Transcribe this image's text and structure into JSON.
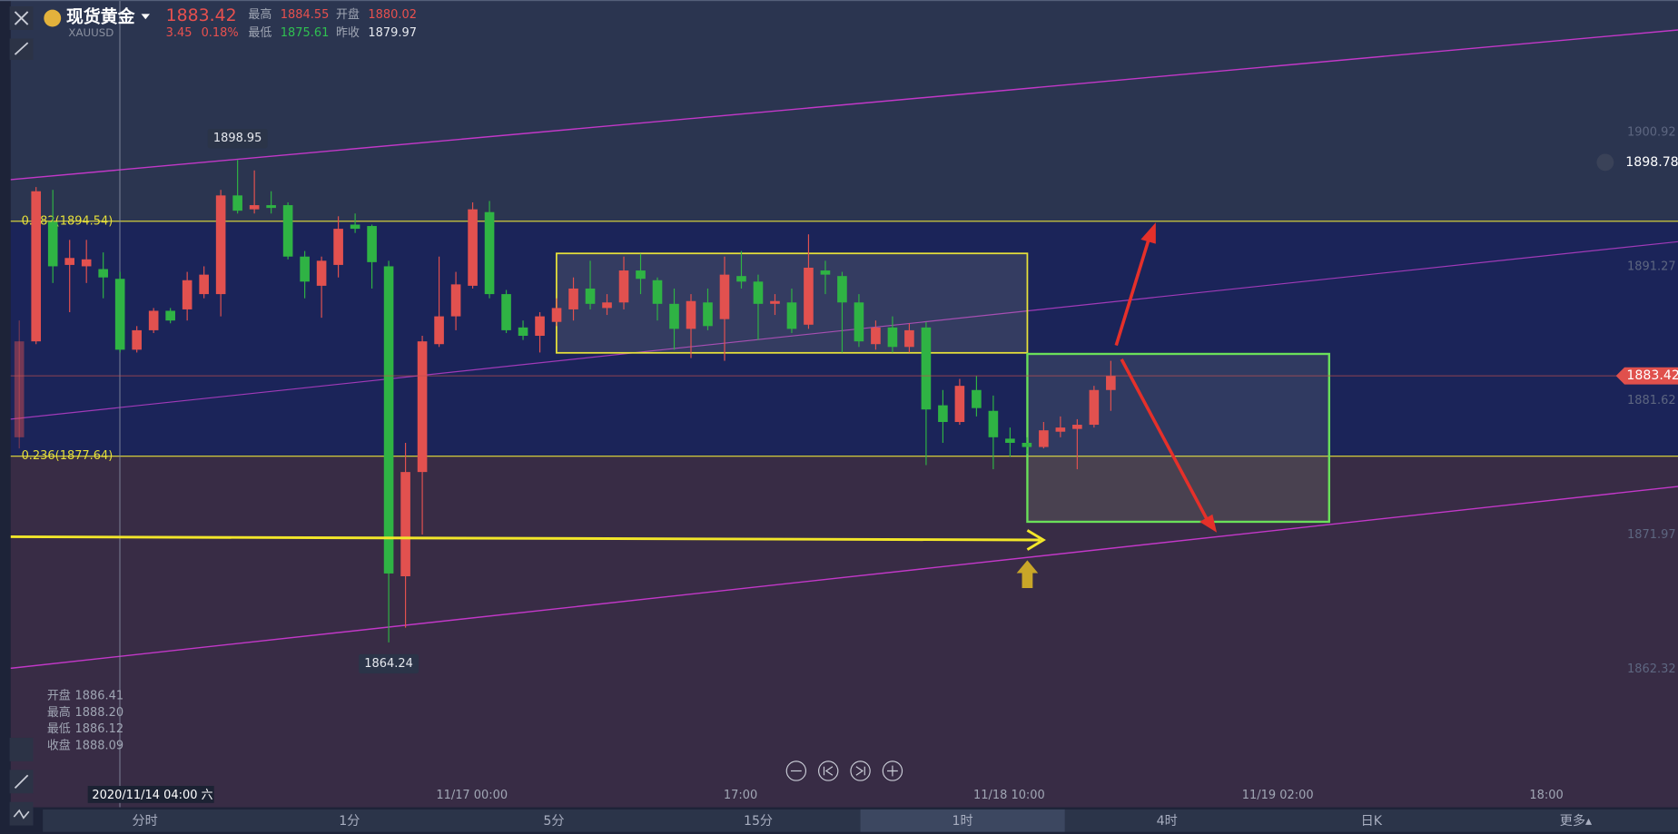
{
  "header": {
    "symbol": "现货黄金",
    "ticker": "XAUUSD",
    "price": "1883.42",
    "change": "3.45",
    "change_pct": "0.18%",
    "high_label": "最高",
    "high": "1884.55",
    "open_label": "开盘",
    "open": "1880.02",
    "low_label": "最低",
    "low": "1875.61",
    "prev_label": "昨收",
    "prev": "1879.97"
  },
  "chart_data": {
    "type": "candlestick",
    "up_color": "#e2514f",
    "down_color": "#2fb344",
    "open": [
      1879.0,
      1885.9,
      1894.5,
      1891.4,
      1891.3,
      1891.1,
      1890.4,
      1885.3,
      1886.7,
      1888.1,
      1888.2,
      1889.3,
      1889.3,
      1896.4,
      1895.4,
      1895.7,
      1895.7,
      1892.0,
      1889.9,
      1891.4,
      1894.3,
      1894.2,
      1891.3,
      1869.0,
      1876.5,
      1885.7,
      1887.7,
      1889.9,
      1895.2,
      1889.3,
      1886.9,
      1886.3,
      1887.3,
      1888.2,
      1889.7,
      1888.3,
      1888.7,
      1891.0,
      1890.3,
      1888.6,
      1886.8,
      1888.7,
      1887.5,
      1890.6,
      1890.2,
      1888.6,
      1888.7,
      1887.1,
      1891.0,
      1890.6,
      1888.7,
      1885.7,
      1886.9,
      1885.5,
      1886.9,
      1881.3,
      1880.1,
      1882.4,
      1880.9,
      1878.9,
      1878.6,
      1878.3,
      1879.4,
      1879.6,
      1879.9,
      1882.4
    ],
    "high": [
      1887.4,
      1897.0,
      1896.8,
      1893.2,
      1893.2,
      1892.3,
      1890.9,
      1887.0,
      1888.3,
      1888.3,
      1890.9,
      1891.3,
      1896.8,
      1898.95,
      1898.2,
      1896.7,
      1895.9,
      1892.4,
      1892.0,
      1894.9,
      1895.1,
      1894.3,
      1891.7,
      1878.6,
      1886.3,
      1892.0,
      1890.9,
      1895.9,
      1896.0,
      1889.6,
      1887.4,
      1888.0,
      1889.0,
      1890.5,
      1891.7,
      1889.3,
      1892.0,
      1892.2,
      1890.5,
      1889.7,
      1889.3,
      1889.7,
      1892.0,
      1892.4,
      1890.7,
      1889.3,
      1889.7,
      1893.6,
      1891.7,
      1890.9,
      1889.3,
      1887.4,
      1887.7,
      1887.2,
      1887.3,
      1882.4,
      1883.2,
      1883.4,
      1882.0,
      1879.7,
      1879.0,
      1880.1,
      1880.5,
      1880.3,
      1882.7,
      1884.5
    ],
    "low": [
      1878.2,
      1885.7,
      1890.1,
      1888.0,
      1890.1,
      1889.0,
      1885.1,
      1885.1,
      1886.5,
      1887.2,
      1887.4,
      1889.0,
      1887.7,
      1895.1,
      1895.1,
      1895.1,
      1891.8,
      1889.0,
      1887.6,
      1890.5,
      1893.7,
      1889.7,
      1864.24,
      1865.3,
      1872.0,
      1885.5,
      1886.7,
      1889.7,
      1889.0,
      1886.5,
      1886.0,
      1885.1,
      1887.0,
      1887.4,
      1888.2,
      1887.8,
      1888.2,
      1889.3,
      1887.4,
      1885.3,
      1884.7,
      1886.7,
      1884.5,
      1889.7,
      1886.0,
      1887.8,
      1886.5,
      1886.8,
      1889.3,
      1885.1,
      1885.5,
      1885.3,
      1885.1,
      1885.1,
      1877.0,
      1878.6,
      1879.9,
      1880.5,
      1876.7,
      1877.6,
      1877.8,
      1878.2,
      1879.0,
      1876.7,
      1879.7,
      1880.9
    ],
    "close": [
      1885.9,
      1896.7,
      1891.3,
      1891.9,
      1891.8,
      1890.5,
      1885.3,
      1886.7,
      1888.1,
      1887.4,
      1890.3,
      1890.7,
      1896.4,
      1895.3,
      1895.7,
      1895.5,
      1892.0,
      1890.2,
      1891.7,
      1894.0,
      1894.0,
      1891.6,
      1869.2,
      1876.5,
      1885.9,
      1887.7,
      1890.0,
      1895.4,
      1889.3,
      1886.7,
      1886.3,
      1887.7,
      1888.3,
      1889.7,
      1888.6,
      1888.7,
      1891.0,
      1890.4,
      1888.6,
      1886.8,
      1888.8,
      1887.0,
      1890.7,
      1890.2,
      1888.6,
      1888.8,
      1886.8,
      1891.2,
      1890.7,
      1888.7,
      1885.9,
      1886.9,
      1885.5,
      1886.7,
      1881.0,
      1880.1,
      1882.7,
      1881.1,
      1879.0,
      1878.6,
      1878.3,
      1879.5,
      1879.7,
      1879.9,
      1882.4,
      1883.42
    ],
    "ylim": [
      1852.38,
      1910.46
    ],
    "yticks": [
      1900.92,
      1891.27,
      1881.62,
      1871.97,
      1862.32
    ],
    "fib_levels": [
      {
        "label": "0.382(1894.54)",
        "value": 1894.54
      },
      {
        "label": "0.236(1877.64)",
        "value": 1877.64
      }
    ],
    "last_price": 1883.42,
    "alert_price": 1898.78,
    "max_callout": 1898.95,
    "min_callout": 1864.24,
    "x_labels": [
      "2020/11/14 04:00 六",
      "11/17 00:00",
      "17:00",
      "11/18 10:00",
      "11/19 02:00",
      "18:00"
    ]
  },
  "info": [
    {
      "label": "开盘",
      "value": "1886.41"
    },
    {
      "label": "最高",
      "value": "1888.20"
    },
    {
      "label": "最低",
      "value": "1886.12"
    },
    {
      "label": "收盘",
      "value": "1888.09"
    }
  ],
  "tabs": [
    "分时",
    "1分",
    "5分",
    "15分",
    "1时",
    "4时",
    "日K",
    "更多▴"
  ],
  "active_tab": 4
}
